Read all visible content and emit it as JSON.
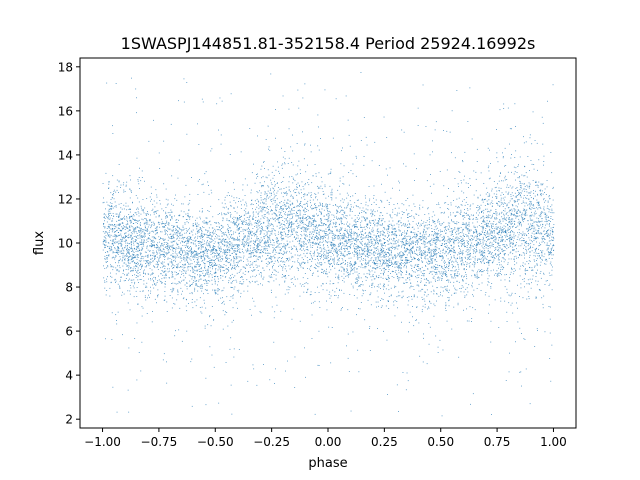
{
  "chart_data": {
    "type": "scatter",
    "title": "1SWASPJ144851.81-352158.4 Period 25924.16992s",
    "xlabel": "phase",
    "ylabel": "flux",
    "xlim": [
      -1.1,
      1.1
    ],
    "ylim": [
      1.6,
      18.4
    ],
    "x_ticks": [
      -1.0,
      -0.75,
      -0.5,
      -0.25,
      0.0,
      0.25,
      0.5,
      0.75,
      1.0
    ],
    "x_tick_labels": [
      "−1.00",
      "−0.75",
      "−0.50",
      "−0.25",
      "0.00",
      "0.25",
      "0.50",
      "0.75",
      "1.00"
    ],
    "y_ticks": [
      2,
      4,
      6,
      8,
      10,
      12,
      14,
      16,
      18
    ],
    "y_tick_labels": [
      "2",
      "4",
      "6",
      "8",
      "10",
      "12",
      "14",
      "16",
      "18"
    ],
    "grid": false,
    "legend": "none",
    "marker_color": "#1f77b4",
    "series": [
      {
        "x_range": [
          -1.0,
          1.0
        ],
        "y_clip": [
          2.1,
          17.8
        ],
        "sampled_trend": {
          "phase": [
            -1.0,
            -0.75,
            -0.5,
            -0.25,
            -0.15,
            0.0,
            0.25,
            0.5,
            0.75,
            0.85,
            1.0
          ],
          "flux_median": [
            10.3,
            9.8,
            9.5,
            10.6,
            10.9,
            10.2,
            9.7,
            9.5,
            10.6,
            10.9,
            10.3
          ],
          "flux_spread": [
            1.1,
            1.0,
            1.0,
            1.2,
            1.3,
            1.1,
            1.0,
            1.0,
            1.2,
            1.3,
            1.1
          ]
        }
      }
    ]
  }
}
